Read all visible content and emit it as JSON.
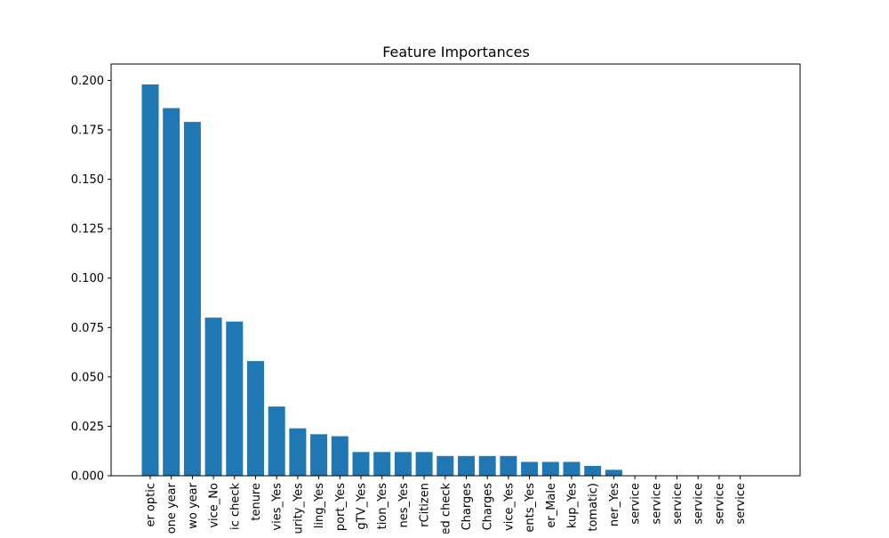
{
  "chart_data": {
    "type": "bar",
    "title": "Feature Importances",
    "xlabel": "",
    "ylabel": "",
    "ylim": [
      0,
      0.2083
    ],
    "yticks": [
      "0.000",
      "0.025",
      "0.050",
      "0.075",
      "0.100",
      "0.125",
      "0.150",
      "0.175",
      "0.200"
    ],
    "ytick_values": [
      0,
      0.025,
      0.05,
      0.075,
      0.1,
      0.125,
      0.15,
      0.175,
      0.2
    ],
    "bar_color": "#1f77b4",
    "grid": false,
    "categories": [
      "er optic",
      "one year",
      "wo year",
      "vice_No",
      "ic check",
      "tenure",
      "vies_Yes",
      "urity_Yes",
      "ling_Yes",
      "port_Yes",
      "gTV_Yes",
      "tion_Yes",
      "nes_Yes",
      "rCitizen",
      "ed check",
      "Charges",
      "Charges",
      "vice_Yes",
      "ents_Yes",
      "er_Male",
      "kup_Yes",
      "tomatic)",
      "ner_Yes",
      "service",
      "service",
      "service",
      "service",
      "service",
      "service"
    ],
    "values": [
      0.198,
      0.186,
      0.179,
      0.08,
      0.078,
      0.058,
      0.035,
      0.024,
      0.021,
      0.02,
      0.012,
      0.012,
      0.012,
      0.012,
      0.01,
      0.01,
      0.01,
      0.01,
      0.007,
      0.007,
      0.007,
      0.005,
      0.003,
      0.0,
      0.0,
      0.0,
      0.0,
      0.0,
      0.0
    ]
  }
}
